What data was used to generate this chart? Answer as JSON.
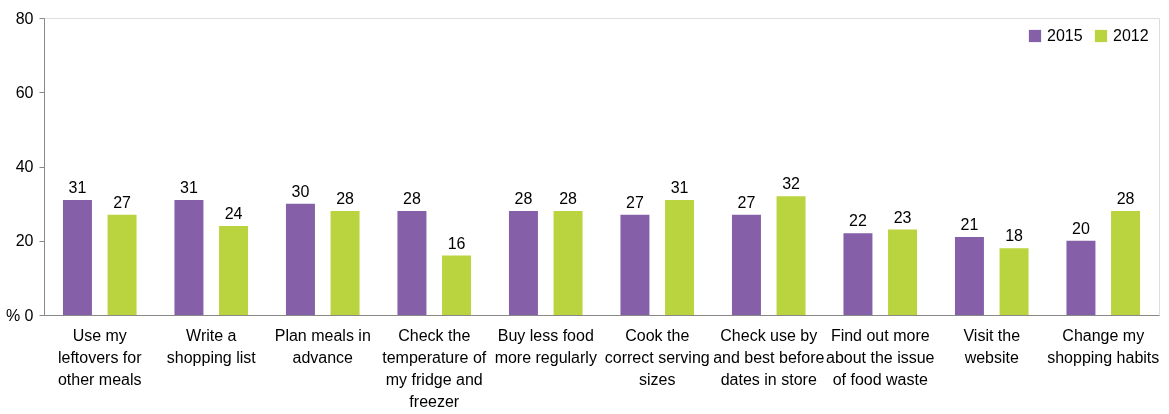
{
  "chart_data": {
    "type": "bar",
    "categories": [
      "Use my leftovers for other meals",
      "Write a shopping list",
      "Plan meals in advance",
      "Check the temperature of my fridge and freezer",
      "Buy less food more regularly",
      "Cook the correct serving sizes",
      "Check use by and best before dates in store",
      "Find out more about the issue of food waste",
      "Visit the website",
      "Change my shopping habits"
    ],
    "series": [
      {
        "name": "2015",
        "color": "#8560a8",
        "values": [
          31,
          31,
          30,
          28,
          28,
          27,
          27,
          22,
          21,
          20
        ]
      },
      {
        "name": "2012",
        "color": "#b9d43e",
        "values": [
          27,
          24,
          28,
          16,
          28,
          31,
          32,
          23,
          18,
          28
        ]
      }
    ],
    "ylim": [
      0,
      80
    ],
    "yticks": [
      {
        "value": 0,
        "label": "% 0"
      },
      20,
      40,
      60,
      80
    ],
    "data_labels": true,
    "grid": false,
    "legend": "top right"
  }
}
